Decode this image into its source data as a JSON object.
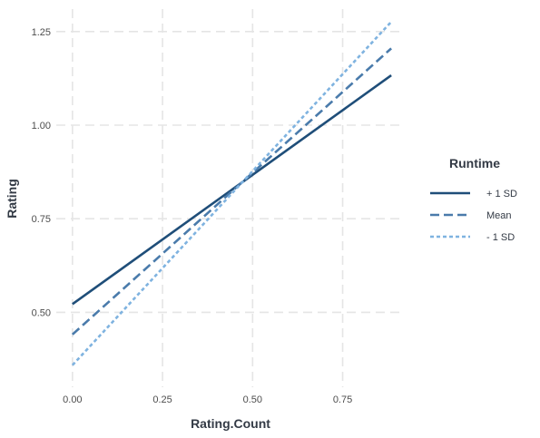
{
  "chart_data": {
    "type": "line",
    "xlabel": "Rating.Count",
    "ylabel": "Rating",
    "xlim": [
      -0.045,
      0.92
    ],
    "ylim": [
      0.3,
      1.31
    ],
    "xticks": [
      0.0,
      0.25,
      0.5,
      0.75
    ],
    "xtick_labels": [
      "0.00",
      "0.25",
      "0.50",
      "0.75"
    ],
    "yticks": [
      0.5,
      0.75,
      1.0,
      1.25
    ],
    "ytick_labels": [
      "0.50",
      "0.75",
      "1.00",
      "1.25"
    ],
    "grid": true,
    "legend": {
      "title": "Runtime",
      "placement": "right"
    },
    "series": [
      {
        "name": "+ 1 SD",
        "x": [
          0.0,
          0.885
        ],
        "y": [
          0.522,
          1.133
        ],
        "color": "#1f4e79",
        "dash": "solid"
      },
      {
        "name": "Mean",
        "x": [
          0.0,
          0.885
        ],
        "y": [
          0.441,
          1.205
        ],
        "color": "#4a7bab",
        "dash": "dashed"
      },
      {
        "name": "- 1 SD",
        "x": [
          0.0,
          0.885
        ],
        "y": [
          0.359,
          1.276
        ],
        "color": "#7fb3e0",
        "dash": "dotted"
      }
    ]
  }
}
